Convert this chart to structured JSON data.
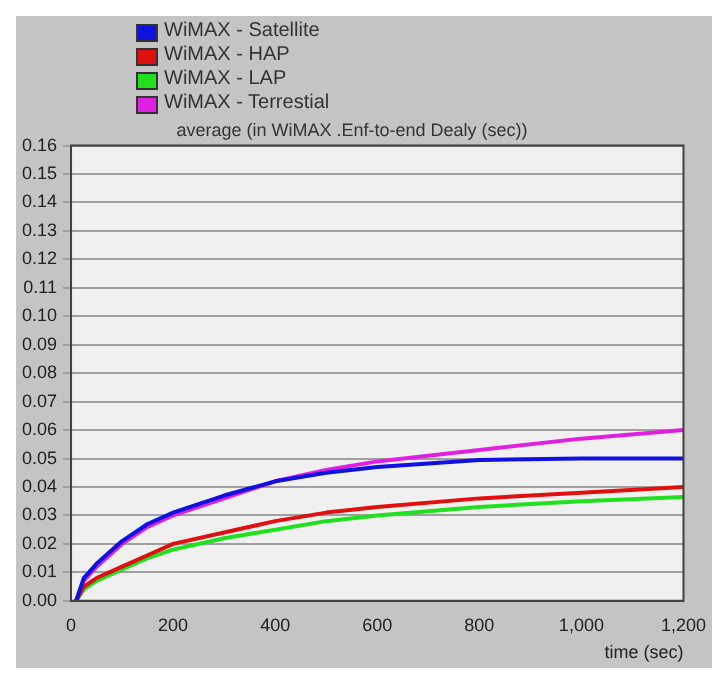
{
  "chart_data": {
    "type": "line",
    "title": "average (in WiMAX .Enf-to-end Dealy (sec))",
    "xlabel": "time (sec)",
    "x": [
      10,
      25,
      50,
      100,
      150,
      200,
      300,
      400,
      500,
      600,
      800,
      1000,
      1200
    ],
    "series": [
      {
        "name": "WiMAX - Satellite",
        "color": "#1010e0",
        "values": [
          0,
          0.008,
          0.013,
          0.021,
          0.027,
          0.031,
          0.037,
          0.042,
          0.045,
          0.047,
          0.0495,
          0.05,
          0.05
        ]
      },
      {
        "name": "WiMAX - HAP",
        "color": "#e01010",
        "values": [
          0,
          0.005,
          0.008,
          0.012,
          0.016,
          0.02,
          0.024,
          0.028,
          0.031,
          0.033,
          0.036,
          0.038,
          0.04
        ]
      },
      {
        "name": "WiMAX - LAP",
        "color": "#20e020",
        "values": [
          0,
          0.004,
          0.007,
          0.011,
          0.015,
          0.018,
          0.022,
          0.025,
          0.028,
          0.03,
          0.033,
          0.035,
          0.0365
        ]
      },
      {
        "name": "WiMAX - Terrestial",
        "color": "#e020e0",
        "values": [
          0,
          0.007,
          0.012,
          0.02,
          0.026,
          0.03,
          0.036,
          0.042,
          0.046,
          0.049,
          0.053,
          0.057,
          0.06
        ]
      }
    ],
    "xlim": [
      0,
      1200
    ],
    "xticks": [
      0,
      200,
      400,
      600,
      800,
      {
        "value": 1000,
        "label": "1,000"
      },
      {
        "value": 1200,
        "label": "1,200"
      }
    ],
    "ylim": [
      0,
      0.16
    ],
    "yticks": [
      {
        "value": 0,
        "label": "0.00"
      },
      {
        "value": 0.01,
        "label": "0.01"
      },
      {
        "value": 0.02,
        "label": "0.02"
      },
      {
        "value": 0.03,
        "label": "0.03"
      },
      {
        "value": 0.04,
        "label": "0.04"
      },
      {
        "value": 0.05,
        "label": "0.05"
      },
      {
        "value": 0.06,
        "label": "0.06"
      },
      {
        "value": 0.07,
        "label": "0.07"
      },
      {
        "value": 0.08,
        "label": "0.08"
      },
      {
        "value": 0.09,
        "label": "0.09"
      },
      {
        "value": 0.1,
        "label": "0.10"
      },
      {
        "value": 0.11,
        "label": "0.11"
      },
      {
        "value": 0.12,
        "label": "0.12"
      },
      {
        "value": 0.13,
        "label": "0.13"
      },
      {
        "value": 0.14,
        "label": "0.14"
      },
      {
        "value": 0.15,
        "label": "0.15"
      },
      {
        "value": 0.16,
        "label": "0.16"
      }
    ],
    "grid": "y",
    "legend": "top left",
    "marker": "none",
    "line_style": "solid"
  }
}
